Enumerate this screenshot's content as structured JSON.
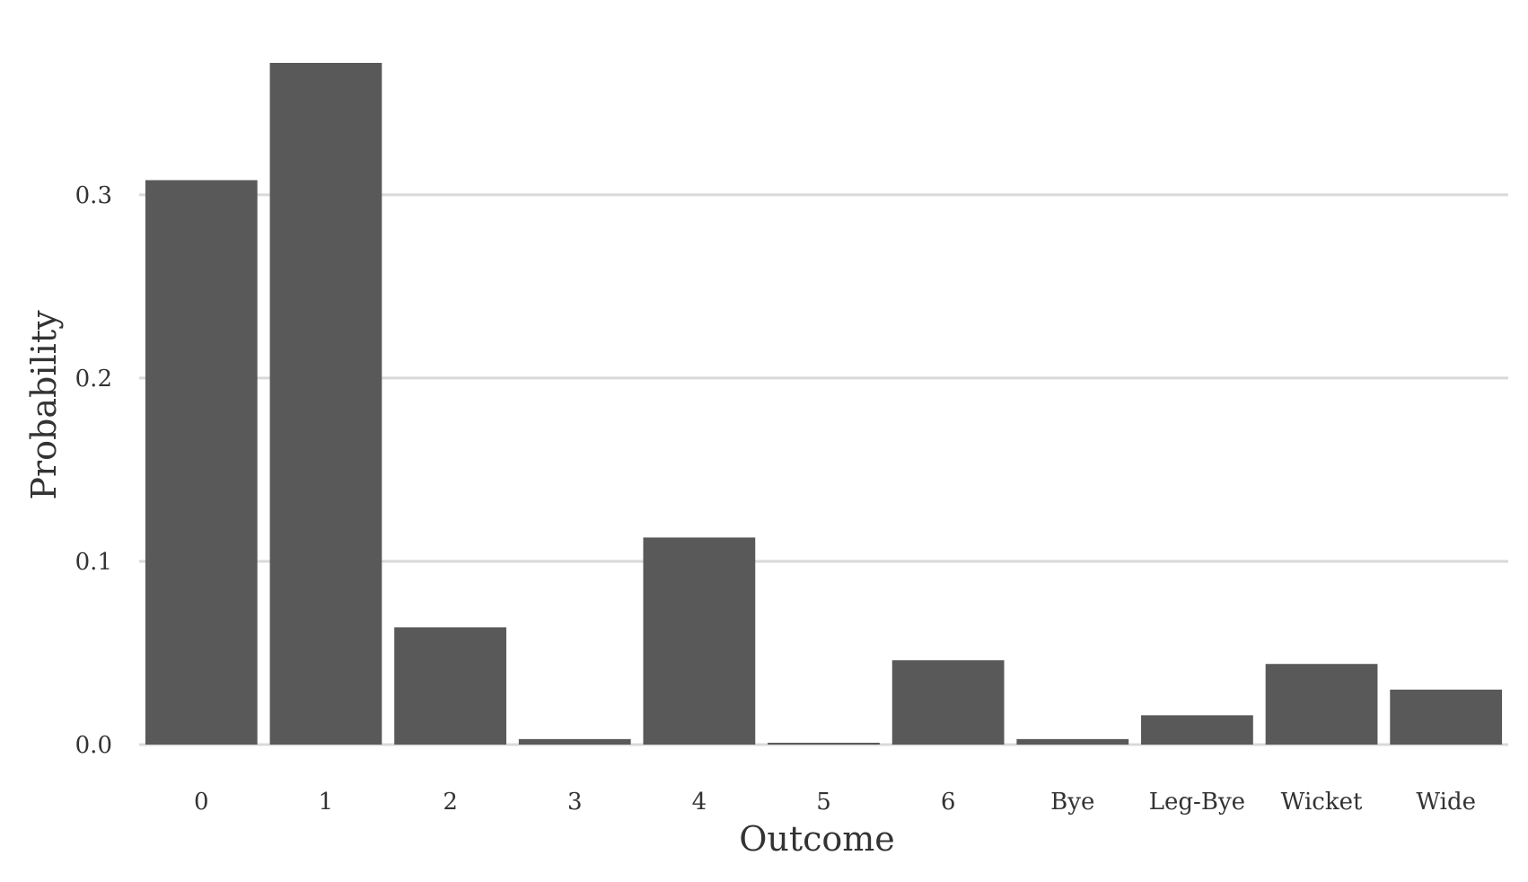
{
  "chart_data": {
    "type": "bar",
    "categories": [
      "0",
      "1",
      "2",
      "3",
      "4",
      "5",
      "6",
      "Bye",
      "Leg-Bye",
      "Wicket",
      "Wide"
    ],
    "values": [
      0.308,
      0.372,
      0.064,
      0.003,
      0.113,
      0.001,
      0.046,
      0.003,
      0.016,
      0.044,
      0.03
    ],
    "title": "",
    "xlabel": "Outcome",
    "ylabel": "Probability",
    "ylim": [
      0,
      0.372
    ],
    "yticks": [
      "0.0",
      "0.1",
      "0.2",
      "0.3"
    ],
    "grid": "horizontal",
    "bar_color": "#595959",
    "grid_color": "#d9d9d9",
    "text_color": "#333333"
  }
}
